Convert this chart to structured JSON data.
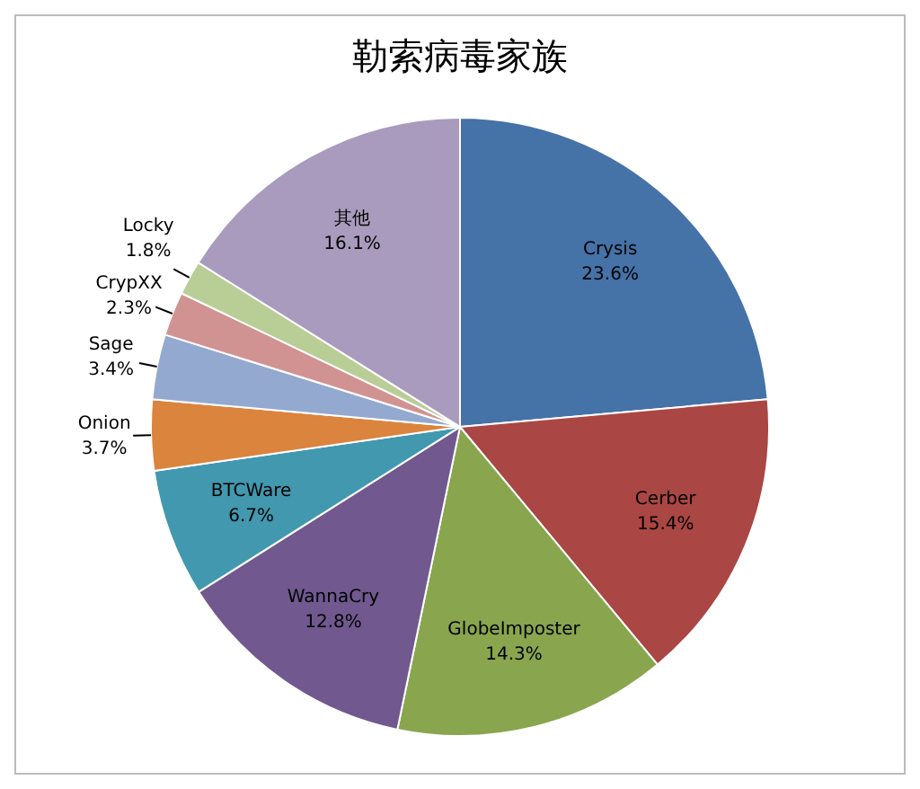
{
  "chart_data": {
    "type": "pie",
    "title": "勒索病毒家族",
    "categories": [
      "Crysis",
      "Cerber",
      "GlobeImposter",
      "WannaCry",
      "BTCWare",
      "Onion",
      "Sage",
      "CrypXX",
      "Locky",
      "其他"
    ],
    "values": [
      23.6,
      15.4,
      14.3,
      12.8,
      6.7,
      3.7,
      3.4,
      2.3,
      1.8,
      16.1
    ],
    "colors": [
      "#4572a7",
      "#aa4643",
      "#89a54e",
      "#71588f",
      "#4198af",
      "#db843d",
      "#93a9cf",
      "#d19392",
      "#b9cd96",
      "#a99bbd"
    ],
    "value_labels": [
      "23.6%",
      "15.4%",
      "14.3%",
      "12.8%",
      "6.7%",
      "3.7%",
      "3.4%",
      "2.3%",
      "1.8%",
      "16.1%"
    ],
    "legend": false
  }
}
